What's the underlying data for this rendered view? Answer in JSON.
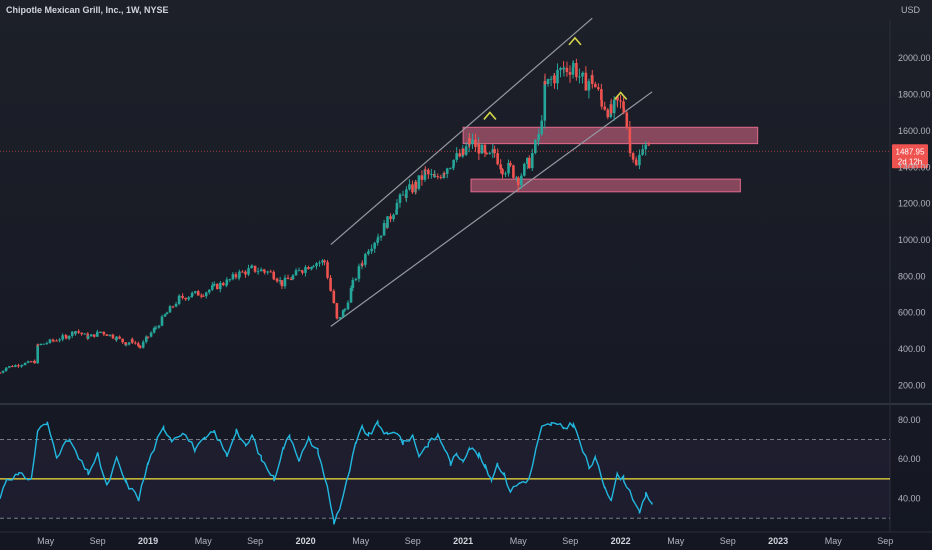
{
  "chart_data": {
    "type": "candlestick",
    "title": "Chipotle Mexican Grill, Inc., 1W, NYSE",
    "currency": "USD",
    "colors": {
      "background": "#161a25",
      "up": "#26a69a",
      "down": "#ef5350",
      "rsi_line": "#22b8e0",
      "rsi_midline": "#f4e13b",
      "zone": "#e06a8a",
      "channel": "#9598a1",
      "marker": "#d4d44a",
      "price_tag": "#ef5350"
    },
    "price_axis": {
      "ticks": [
        "2000.00",
        "1800.00",
        "1600.00",
        "1400.00",
        "1200.00",
        "1000.00",
        "800.00",
        "600.00",
        "400.00",
        "200.00"
      ],
      "tick_values": [
        2000,
        1800,
        1600,
        1400,
        1200,
        1000,
        800,
        600,
        400,
        200
      ],
      "range": [
        120,
        2210
      ]
    },
    "rsi_axis": {
      "ticks": [
        "80.00",
        "60.00",
        "40.00"
      ],
      "tick_values": [
        80,
        60,
        40
      ],
      "range": [
        24,
        86
      ],
      "bands": [
        70,
        30
      ],
      "midline": 50
    },
    "last_price": {
      "value": 1487.95,
      "label": "1487.95",
      "countdown": "2d 12h"
    },
    "time_axis": {
      "labels": [
        "May",
        "Sep",
        "2019",
        "May",
        "Sep",
        "2020",
        "May",
        "Sep",
        "2021",
        "May",
        "Sep",
        "2022",
        "May",
        "Sep",
        "2023",
        "May",
        "Sep"
      ],
      "years": [
        2018.35,
        2018.68,
        2019.0,
        2019.35,
        2019.68,
        2020.0,
        2020.35,
        2020.68,
        2021.0,
        2021.35,
        2021.68,
        2022.0,
        2022.35,
        2022.68,
        2023.0,
        2023.35,
        2023.68
      ],
      "range": [
        2018.06,
        2023.71
      ]
    },
    "price_series": [
      [
        2018.06,
        270
      ],
      [
        2018.1,
        300
      ],
      [
        2018.2,
        318
      ],
      [
        2018.28,
        330
      ],
      [
        2018.3,
        420
      ],
      [
        2018.4,
        448
      ],
      [
        2018.48,
        470
      ],
      [
        2018.54,
        500
      ],
      [
        2018.62,
        465
      ],
      [
        2018.7,
        495
      ],
      [
        2018.8,
        462
      ],
      [
        2018.86,
        430
      ],
      [
        2018.9,
        445
      ],
      [
        2018.95,
        410
      ],
      [
        2019.0,
        470
      ],
      [
        2019.05,
        520
      ],
      [
        2019.12,
        600
      ],
      [
        2019.2,
        680
      ],
      [
        2019.28,
        700
      ],
      [
        2019.35,
        710
      ],
      [
        2019.42,
        740
      ],
      [
        2019.5,
        770
      ],
      [
        2019.58,
        815
      ],
      [
        2019.66,
        840
      ],
      [
        2019.74,
        830
      ],
      [
        2019.8,
        810
      ],
      [
        2019.85,
        760
      ],
      [
        2019.92,
        800
      ],
      [
        2019.98,
        840
      ],
      [
        2020.05,
        875
      ],
      [
        2020.12,
        880
      ],
      [
        2020.16,
        720
      ],
      [
        2020.2,
        560
      ],
      [
        2020.25,
        620
      ],
      [
        2020.3,
        760
      ],
      [
        2020.36,
        880
      ],
      [
        2020.4,
        960
      ],
      [
        2020.46,
        1020
      ],
      [
        2020.52,
        1100
      ],
      [
        2020.58,
        1200
      ],
      [
        2020.64,
        1260
      ],
      [
        2020.7,
        1300
      ],
      [
        2020.76,
        1370
      ],
      [
        2020.82,
        1330
      ],
      [
        2020.88,
        1390
      ],
      [
        2020.94,
        1440
      ],
      [
        2021.0,
        1470
      ],
      [
        2021.04,
        1540
      ],
      [
        2021.1,
        1510
      ],
      [
        2021.15,
        1440
      ],
      [
        2021.2,
        1480
      ],
      [
        2021.25,
        1400
      ],
      [
        2021.3,
        1390
      ],
      [
        2021.35,
        1340
      ],
      [
        2021.42,
        1430
      ],
      [
        2021.48,
        1560
      ],
      [
        2021.52,
        1840
      ],
      [
        2021.58,
        1900
      ],
      [
        2021.64,
        1940
      ],
      [
        2021.7,
        1960
      ],
      [
        2021.76,
        1870
      ],
      [
        2021.82,
        1880
      ],
      [
        2021.88,
        1760
      ],
      [
        2021.94,
        1700
      ],
      [
        2021.98,
        1750
      ],
      [
        2022.02,
        1740
      ],
      [
        2022.06,
        1520
      ],
      [
        2022.1,
        1400
      ],
      [
        2022.14,
        1520
      ],
      [
        2022.18,
        1487.95
      ]
    ],
    "rsi_series": [
      [
        2018.06,
        40
      ],
      [
        2018.1,
        50
      ],
      [
        2018.18,
        52
      ],
      [
        2018.26,
        50
      ],
      [
        2018.3,
        75
      ],
      [
        2018.36,
        78
      ],
      [
        2018.42,
        62
      ],
      [
        2018.5,
        70
      ],
      [
        2018.56,
        60
      ],
      [
        2018.62,
        53
      ],
      [
        2018.68,
        62
      ],
      [
        2018.74,
        46
      ],
      [
        2018.8,
        60
      ],
      [
        2018.86,
        48
      ],
      [
        2018.94,
        40
      ],
      [
        2019.0,
        58
      ],
      [
        2019.06,
        70
      ],
      [
        2019.1,
        76
      ],
      [
        2019.15,
        70
      ],
      [
        2019.22,
        74
      ],
      [
        2019.3,
        65
      ],
      [
        2019.36,
        70
      ],
      [
        2019.42,
        74
      ],
      [
        2019.5,
        62
      ],
      [
        2019.56,
        75
      ],
      [
        2019.62,
        66
      ],
      [
        2019.66,
        72
      ],
      [
        2019.72,
        60
      ],
      [
        2019.8,
        50
      ],
      [
        2019.86,
        66
      ],
      [
        2019.9,
        72
      ],
      [
        2019.96,
        60
      ],
      [
        2020.02,
        70
      ],
      [
        2020.08,
        64
      ],
      [
        2020.14,
        45
      ],
      [
        2020.18,
        28
      ],
      [
        2020.22,
        36
      ],
      [
        2020.26,
        48
      ],
      [
        2020.32,
        68
      ],
      [
        2020.36,
        76
      ],
      [
        2020.4,
        72
      ],
      [
        2020.46,
        78
      ],
      [
        2020.52,
        72
      ],
      [
        2020.58,
        74
      ],
      [
        2020.62,
        68
      ],
      [
        2020.68,
        72
      ],
      [
        2020.72,
        62
      ],
      [
        2020.78,
        68
      ],
      [
        2020.84,
        72
      ],
      [
        2020.88,
        66
      ],
      [
        2020.92,
        58
      ],
      [
        2020.96,
        62
      ],
      [
        2021.0,
        60
      ],
      [
        2021.04,
        66
      ],
      [
        2021.1,
        62
      ],
      [
        2021.14,
        56
      ],
      [
        2021.18,
        50
      ],
      [
        2021.22,
        58
      ],
      [
        2021.26,
        52
      ],
      [
        2021.3,
        44
      ],
      [
        2021.36,
        48
      ],
      [
        2021.42,
        50
      ],
      [
        2021.46,
        64
      ],
      [
        2021.5,
        76
      ],
      [
        2021.56,
        78
      ],
      [
        2021.64,
        76
      ],
      [
        2021.7,
        78
      ],
      [
        2021.76,
        64
      ],
      [
        2021.8,
        56
      ],
      [
        2021.84,
        60
      ],
      [
        2021.9,
        46
      ],
      [
        2021.94,
        40
      ],
      [
        2021.98,
        52
      ],
      [
        2022.02,
        50
      ],
      [
        2022.08,
        40
      ],
      [
        2022.12,
        32
      ],
      [
        2022.16,
        42
      ],
      [
        2022.2,
        38
      ]
    ],
    "channel_lines": [
      [
        [
          2020.16,
          975
        ],
        [
          2021.82,
          2220
        ]
      ],
      [
        [
          2020.16,
          525
        ],
        [
          2022.2,
          1815
        ]
      ]
    ],
    "zones": [
      {
        "name": "resistance-zone",
        "x": [
          2021.0,
          2022.87
        ],
        "y": [
          1530,
          1620
        ]
      },
      {
        "name": "support-zone",
        "x": [
          2021.05,
          2022.76
        ],
        "y": [
          1265,
          1335
        ]
      }
    ],
    "pattern_markers": [
      {
        "name": "left-shoulder",
        "x": 2021.17,
        "y": 1685
      },
      {
        "name": "head",
        "x": 2021.71,
        "y": 2095
      },
      {
        "name": "right-shoulder",
        "x": 2022.0,
        "y": 1795
      }
    ],
    "grid": false,
    "legend": "none"
  }
}
